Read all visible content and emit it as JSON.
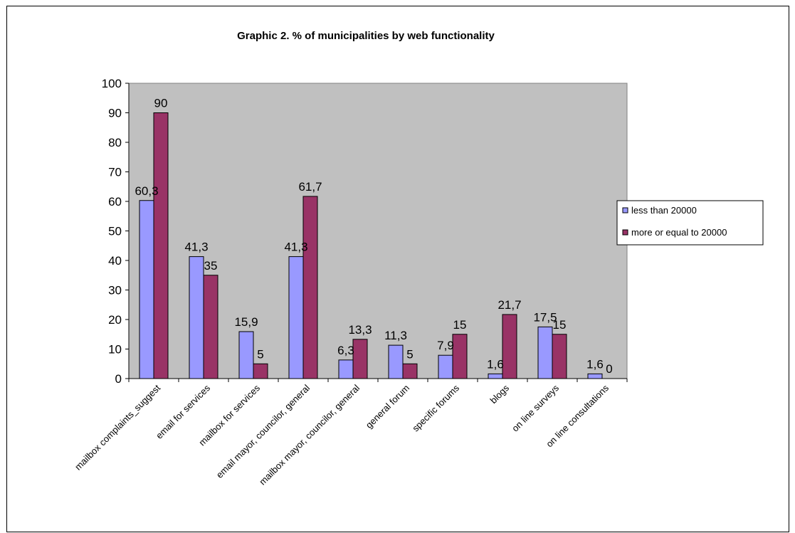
{
  "chart_data": {
    "type": "bar",
    "title": "Graphic 2. % of municipalities by web functionality",
    "xlabel": "",
    "ylabel": "",
    "ylim": [
      0,
      100
    ],
    "yticks": [
      "0",
      "10",
      "20",
      "30",
      "40",
      "50",
      "60",
      "70",
      "80",
      "90",
      "100"
    ],
    "grid": false,
    "plot_background": "#C0C0C0",
    "legend_position": "right",
    "categories": [
      "mailbox complaints_suggest",
      "email for services",
      "mailbox for services",
      "email mayor, councilor, general",
      "mailbox mayor, councilor, general",
      "general forum",
      "specific forums",
      "blogs",
      "on line surveys",
      "on line consultations"
    ],
    "series": [
      {
        "name": "less than 20000",
        "color": "#9999FF",
        "values": [
          60.3,
          41.3,
          15.9,
          41.3,
          6.3,
          11.3,
          7.9,
          1.6,
          17.5,
          1.6
        ],
        "labels": [
          "60,3",
          "41,3",
          "15,9",
          "41,3",
          "6,3",
          "11,3",
          "7,9",
          "1,6",
          "17,5",
          "1,6"
        ]
      },
      {
        "name": "more or equal to 20000",
        "color": "#993366",
        "values": [
          90,
          35,
          5,
          61.7,
          13.3,
          5,
          15,
          21.7,
          15,
          0
        ],
        "labels": [
          "90",
          "35",
          "5",
          "61,7",
          "13,3",
          "5",
          "15",
          "21,7",
          "15",
          "0"
        ]
      }
    ]
  }
}
